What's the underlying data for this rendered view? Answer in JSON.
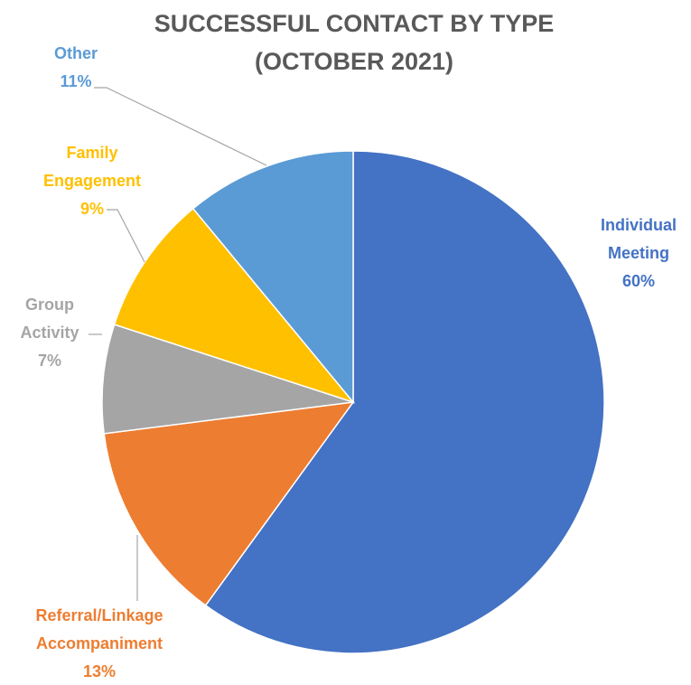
{
  "chart_data": {
    "type": "pie",
    "title": "SUCCESSFUL CONTACT BY TYPE (OCTOBER 2021)",
    "categories": [
      "Individual Meeting",
      "Referral/Linkage Accompaniment",
      "Group Activity",
      "Family Engagement",
      "Other"
    ],
    "values": [
      60,
      13,
      7,
      9,
      11
    ],
    "value_labels": [
      "60%",
      "13%",
      "7%",
      "9%",
      "11%"
    ],
    "colors": [
      "#4472c4",
      "#ed7d31",
      "#a5a5a5",
      "#ffc000",
      "#5b9bd5"
    ]
  }
}
